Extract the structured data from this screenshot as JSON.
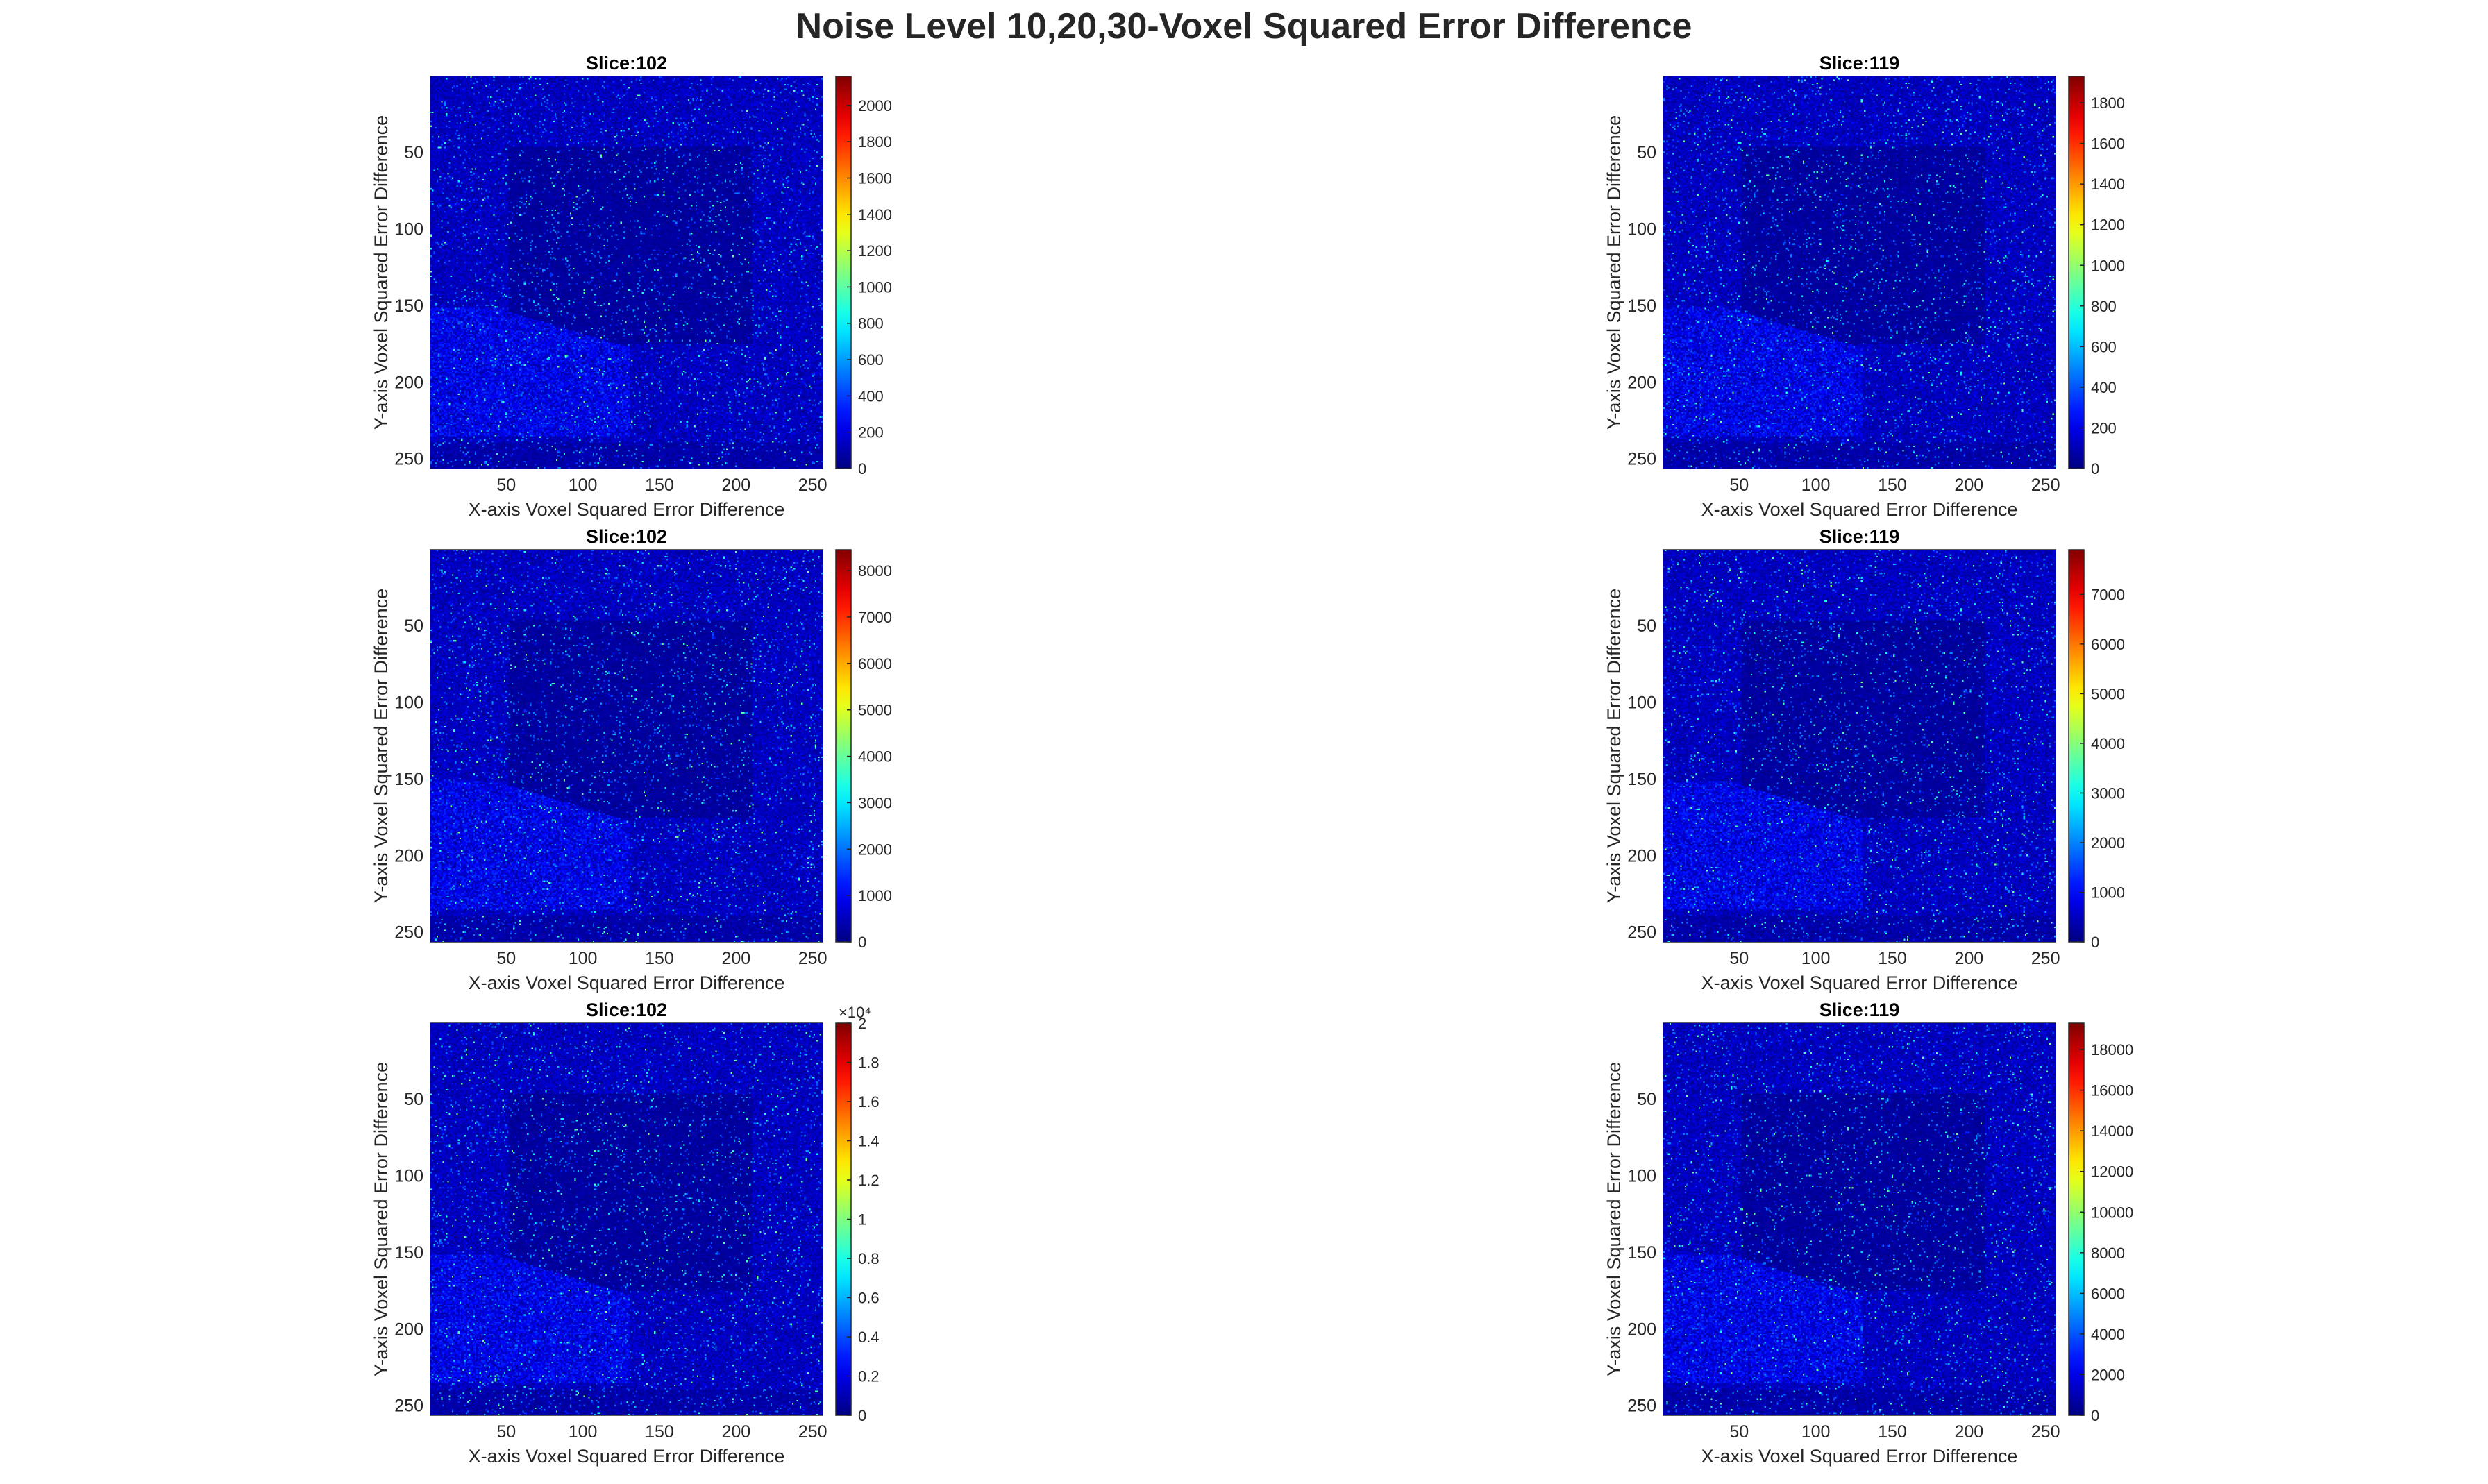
{
  "figure_title": "Noise Level 10,20,30-Voxel Squared Error Difference",
  "colormap": "jet",
  "chart_data": [
    {
      "type": "heatmap",
      "title": "Slice:102",
      "xlabel": "X-axis Voxel Squared Error Difference",
      "ylabel": "Y-axis Voxel Squared Error Difference",
      "xlim": [
        1,
        256
      ],
      "ylim": [
        1,
        256
      ],
      "xticks": [
        50,
        100,
        150,
        200,
        250
      ],
      "yticks": [
        50,
        100,
        150,
        200,
        250
      ],
      "clim": [
        0,
        2160
      ],
      "cbticks": [
        0,
        200,
        400,
        600,
        800,
        1000,
        1200,
        1400,
        1600,
        1800,
        2000
      ],
      "cbticklabels": [
        "0",
        "200",
        "400",
        "600",
        "800",
        "1000",
        "1200",
        "1400",
        "1600",
        "1800",
        "2000"
      ],
      "cb_exponent": ""
    },
    {
      "type": "heatmap",
      "title": "Slice:119",
      "xlabel": "X-axis Voxel Squared Error Difference",
      "ylabel": "Y-axis Voxel Squared Error Difference",
      "xlim": [
        1,
        256
      ],
      "ylim": [
        1,
        256
      ],
      "xticks": [
        50,
        100,
        150,
        200,
        250
      ],
      "yticks": [
        50,
        100,
        150,
        200,
        250
      ],
      "clim": [
        0,
        1930
      ],
      "cbticks": [
        0,
        200,
        400,
        600,
        800,
        1000,
        1200,
        1400,
        1600,
        1800
      ],
      "cbticklabels": [
        "0",
        "200",
        "400",
        "600",
        "800",
        "1000",
        "1200",
        "1400",
        "1600",
        "1800"
      ],
      "cb_exponent": ""
    },
    {
      "type": "heatmap",
      "title": "Slice:102",
      "xlabel": "X-axis Voxel Squared Error Difference",
      "ylabel": "Y-axis Voxel Squared Error Difference",
      "xlim": [
        1,
        256
      ],
      "ylim": [
        1,
        256
      ],
      "xticks": [
        50,
        100,
        150,
        200,
        250
      ],
      "yticks": [
        50,
        100,
        150,
        200,
        250
      ],
      "clim": [
        0,
        8450
      ],
      "cbticks": [
        0,
        1000,
        2000,
        3000,
        4000,
        5000,
        6000,
        7000,
        8000
      ],
      "cbticklabels": [
        "0",
        "1000",
        "2000",
        "3000",
        "4000",
        "5000",
        "6000",
        "7000",
        "8000"
      ],
      "cb_exponent": ""
    },
    {
      "type": "heatmap",
      "title": "Slice:119",
      "xlabel": "X-axis Voxel Squared Error Difference",
      "ylabel": "Y-axis Voxel Squared Error Difference",
      "xlim": [
        1,
        256
      ],
      "ylim": [
        1,
        256
      ],
      "xticks": [
        50,
        100,
        150,
        200,
        250
      ],
      "yticks": [
        50,
        100,
        150,
        200,
        250
      ],
      "clim": [
        0,
        7900
      ],
      "cbticks": [
        0,
        1000,
        2000,
        3000,
        4000,
        5000,
        6000,
        7000
      ],
      "cbticklabels": [
        "0",
        "1000",
        "2000",
        "3000",
        "4000",
        "5000",
        "6000",
        "7000"
      ],
      "cb_exponent": ""
    },
    {
      "type": "heatmap",
      "title": "Slice:102",
      "xlabel": "X-axis Voxel Squared Error Difference",
      "ylabel": "Y-axis Voxel Squared Error Difference",
      "xlim": [
        1,
        256
      ],
      "ylim": [
        1,
        256
      ],
      "xticks": [
        50,
        100,
        150,
        200,
        250
      ],
      "yticks": [
        50,
        100,
        150,
        200,
        250
      ],
      "clim": [
        0,
        20000
      ],
      "cbticks": [
        0,
        2000,
        4000,
        6000,
        8000,
        10000,
        12000,
        14000,
        16000,
        18000,
        20000
      ],
      "cbticklabels": [
        "0",
        "0.2",
        "0.4",
        "0.6",
        "0.8",
        "1",
        "1.2",
        "1.4",
        "1.6",
        "1.8",
        "2"
      ],
      "cb_exponent": "×10⁴"
    },
    {
      "type": "heatmap",
      "title": "Slice:119",
      "xlabel": "X-axis Voxel Squared Error Difference",
      "ylabel": "Y-axis Voxel Squared Error Difference",
      "xlim": [
        1,
        256
      ],
      "ylim": [
        1,
        256
      ],
      "xticks": [
        50,
        100,
        150,
        200,
        250
      ],
      "yticks": [
        50,
        100,
        150,
        200,
        250
      ],
      "clim": [
        0,
        19300
      ],
      "cbticks": [
        0,
        2000,
        4000,
        6000,
        8000,
        10000,
        12000,
        14000,
        16000,
        18000
      ],
      "cbticklabels": [
        "0",
        "2000",
        "4000",
        "6000",
        "8000",
        "10000",
        "12000",
        "14000",
        "16000",
        "18000"
      ],
      "cb_exponent": ""
    }
  ]
}
